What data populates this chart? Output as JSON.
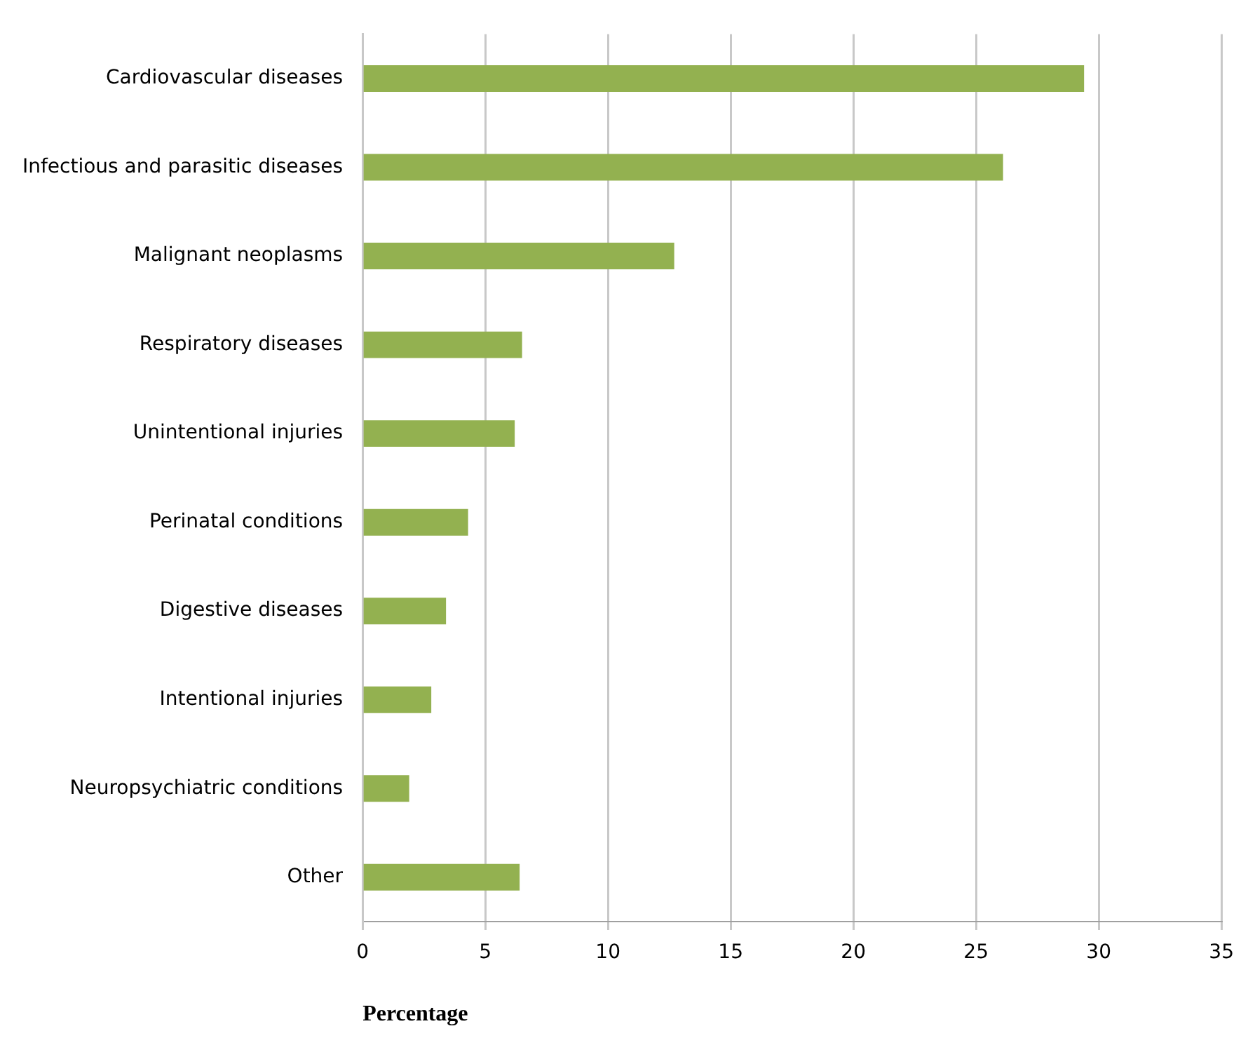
{
  "chart_data": {
    "type": "bar",
    "orientation": "horizontal",
    "xlabel": "Percentage",
    "categories": [
      "Cardiovascular diseases",
      "Infectious and parasitic diseases",
      "Malignant neoplasms",
      "Respiratory diseases",
      "Unintentional injuries",
      "Perinatal conditions",
      "Digestive diseases",
      "Intentional injuries",
      "Neuropsychiatric conditions",
      "Other"
    ],
    "values": [
      29.4,
      26.1,
      12.7,
      6.5,
      6.2,
      4.3,
      3.4,
      2.8,
      1.9,
      6.4
    ],
    "color": "#93b150",
    "xlim": [
      0,
      35
    ],
    "xticks": [
      0,
      5,
      10,
      15,
      20,
      25,
      30,
      35
    ],
    "grid": "x",
    "legend": false
  }
}
